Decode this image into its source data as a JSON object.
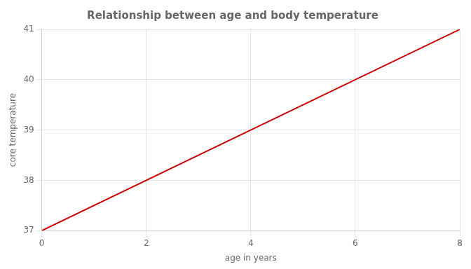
{
  "chart_data": {
    "type": "line",
    "title": "Relationship between age and body temperature",
    "xlabel": "age in years",
    "ylabel": "core temperature",
    "x": [
      0,
      8
    ],
    "values": [
      37,
      41
    ],
    "color": "#cc0000",
    "xlim": [
      0,
      8
    ],
    "ylim": [
      37,
      41
    ],
    "xticks": [
      0,
      2,
      4,
      6,
      8
    ],
    "yticks": [
      37,
      38,
      39,
      40,
      41
    ],
    "grid": true
  }
}
